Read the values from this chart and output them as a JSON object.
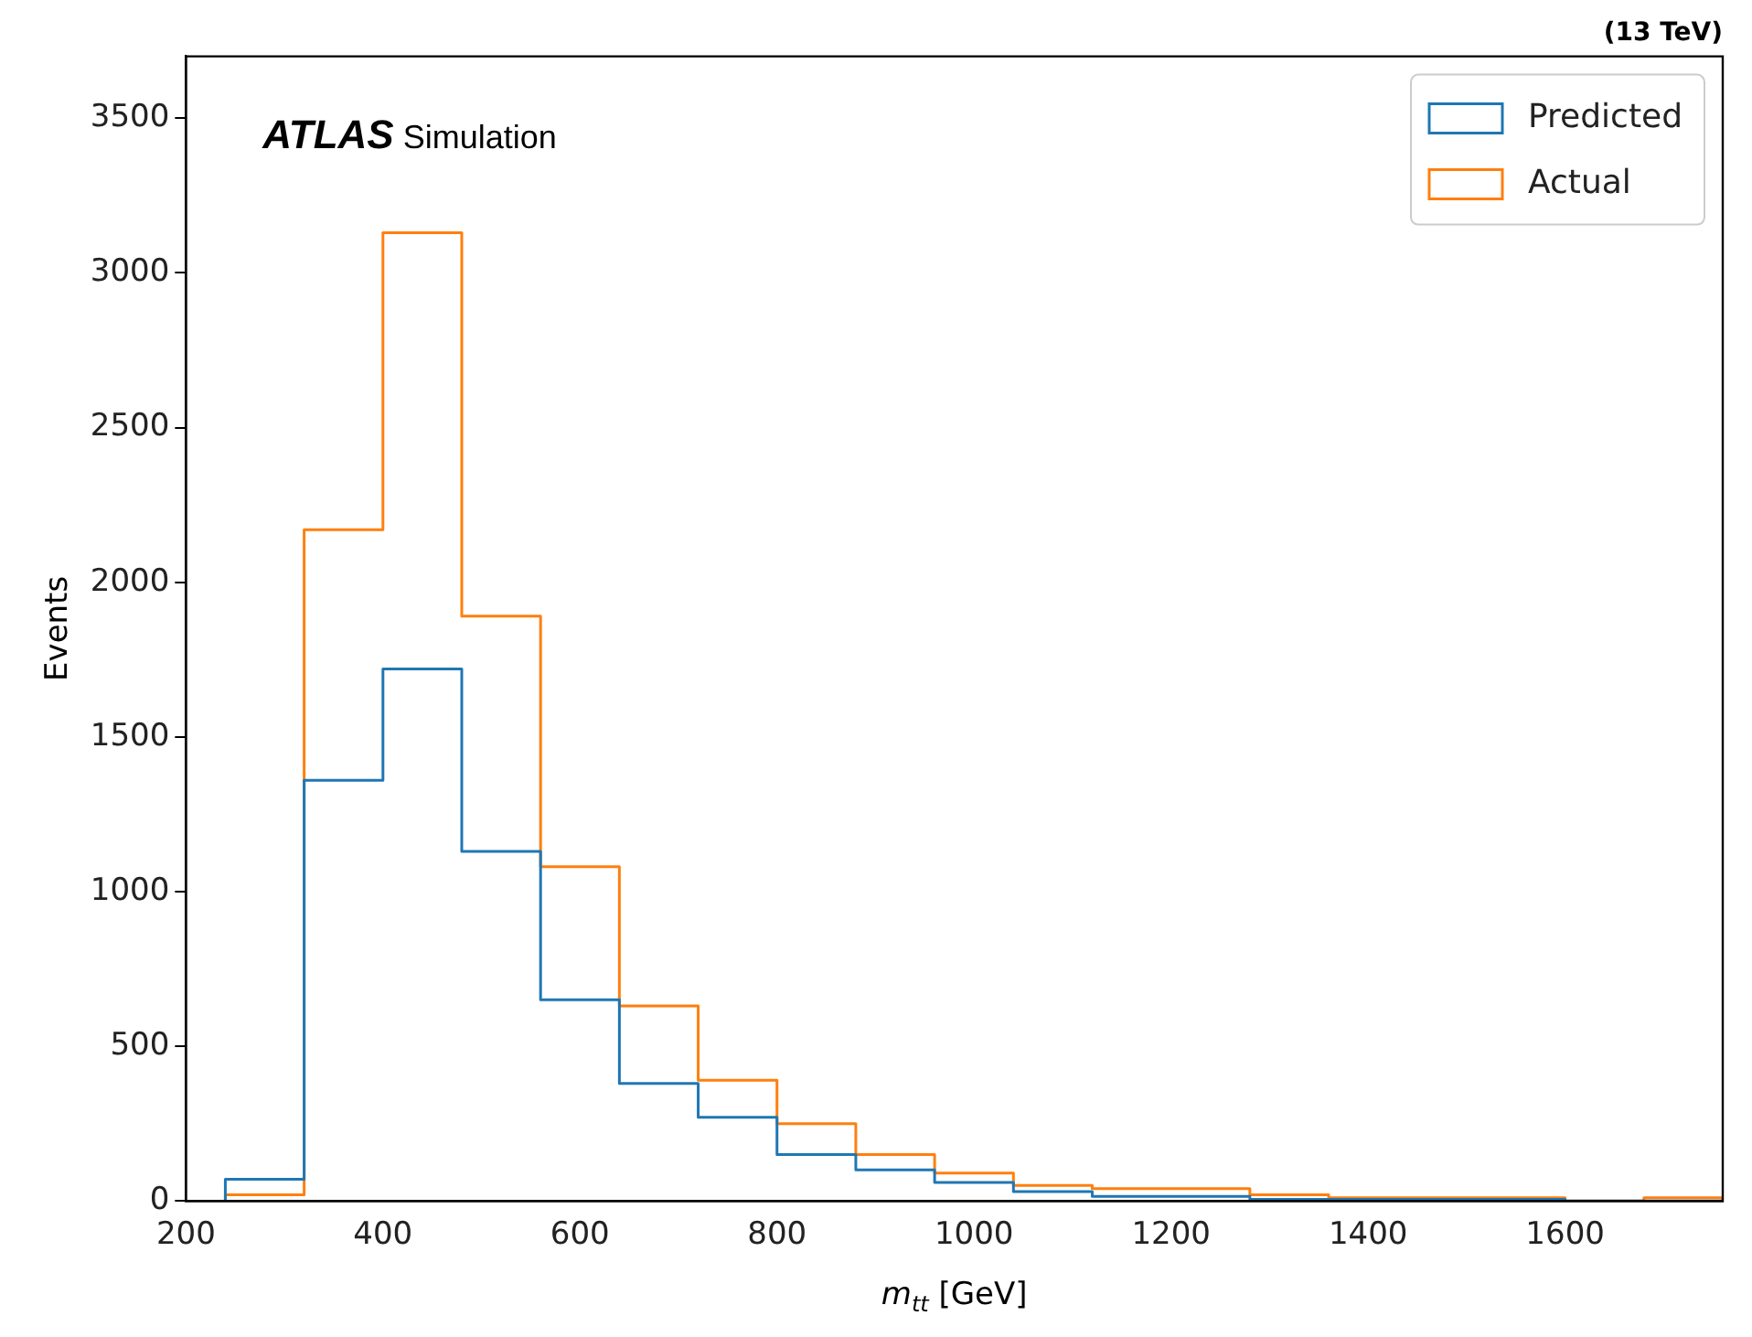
{
  "chart_data": {
    "type": "histogram",
    "title": "(13 TeV)",
    "xlabel": "m$_{tt}$ [GeV]",
    "ylabel": "Events",
    "annotations": [
      "ATLAS Simulation"
    ],
    "bins": [
      240,
      320,
      400,
      480,
      560,
      640,
      720,
      800,
      880,
      960,
      1040,
      1120,
      1200,
      1280,
      1360,
      1440,
      1520,
      1600,
      1680,
      1760
    ],
    "series": [
      {
        "name": "Predicted",
        "color": "#1f77b4",
        "values": [
          70,
          1360,
          1720,
          1130,
          650,
          380,
          270,
          150,
          100,
          60,
          30,
          15,
          15,
          5,
          5,
          5,
          5,
          0,
          0
        ]
      },
      {
        "name": "Actual",
        "color": "#ff7f0e",
        "values": [
          20,
          2170,
          3130,
          1890,
          1080,
          630,
          390,
          250,
          150,
          90,
          50,
          40,
          40,
          20,
          10,
          10,
          10,
          0,
          10
        ]
      }
    ],
    "xlim": [
      200,
      1760
    ],
    "ylim": [
      0,
      3700
    ],
    "xticks": [
      200,
      400,
      600,
      800,
      1000,
      1200,
      1400,
      1600
    ],
    "yticks": [
      0,
      500,
      1000,
      1500,
      2000,
      2500,
      3000,
      3500
    ],
    "legend": "top right",
    "grid": false
  }
}
